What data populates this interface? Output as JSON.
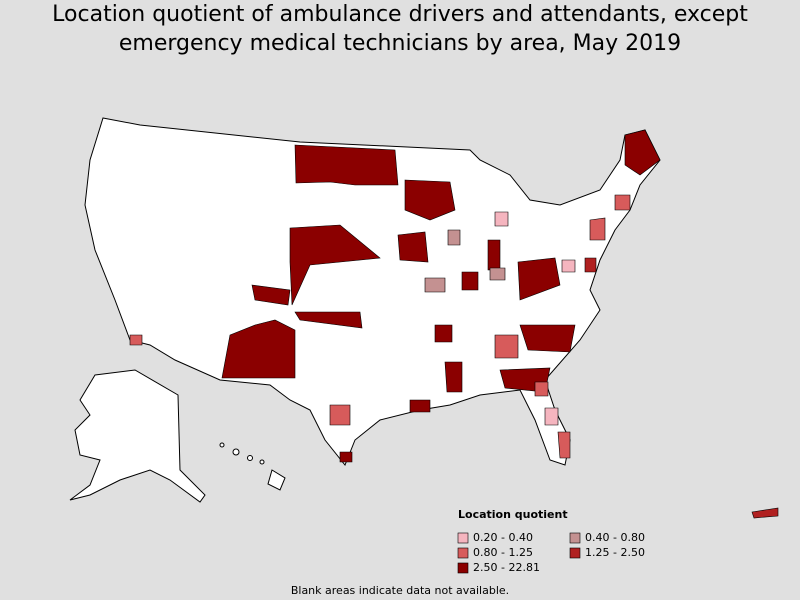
{
  "title": "Location quotient of ambulance drivers and attendants, except emergency medical technicians by area, May 2019",
  "legend": {
    "title": "Location quotient",
    "items": [
      {
        "label": "0.20 - 0.40",
        "color": "#f5b5bf"
      },
      {
        "label": "0.40 - 0.80",
        "color": "#c49191"
      },
      {
        "label": "0.80 - 1.25",
        "color": "#d75b5b"
      },
      {
        "label": "1.25 - 2.50",
        "color": "#b02020"
      },
      {
        "label": "2.50 - 22.81",
        "color": "#8b0000"
      }
    ]
  },
  "footnote": "Blank areas indicate data not available."
}
